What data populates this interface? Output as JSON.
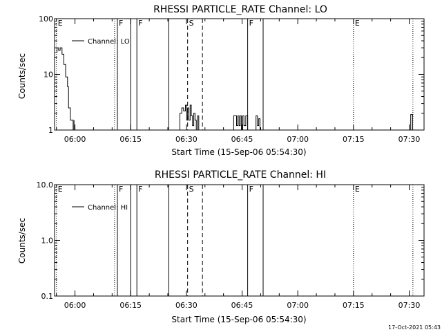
{
  "timestamp": "17-Oct-2021 05:43",
  "chart_data": [
    {
      "type": "line",
      "title": "RHESSI PARTICLE_RATE Channel: LO",
      "xlabel": "Start Time (15-Sep-06 05:54:30)",
      "ylabel": "Counts/sec",
      "yscale": "log",
      "ylim": [
        1,
        100
      ],
      "yticks": [
        1,
        10,
        100
      ],
      "ytick_labels": [
        "1",
        "10",
        "100"
      ],
      "xlim": [
        "05:54:30",
        "07:34:00"
      ],
      "xticks": [
        "06:00",
        "06:15",
        "06:30",
        "06:45",
        "07:00",
        "07:15",
        "07:30"
      ],
      "legend": "top-left",
      "series": [
        {
          "name": "Channel: LO",
          "segments": [
            [
              [
                "05:54:45",
                25
              ],
              [
                "05:55:10",
                30
              ],
              [
                "05:55:35",
                27
              ],
              [
                "05:56:00",
                30
              ],
              [
                "05:56:30",
                23
              ],
              [
                "05:57:00",
                15
              ],
              [
                "05:57:30",
                9
              ],
              [
                "05:58:00",
                6
              ],
              [
                "05:58:15",
                2.5
              ],
              [
                "05:58:45",
                1.5
              ],
              [
                "05:59:15",
                1.5
              ],
              [
                "05:59:30",
                1
              ],
              [
                "05:59:45",
                1.5
              ]
            ],
            [
              [
                "06:27:45",
                1
              ],
              [
                "06:28:15",
                2
              ],
              [
                "06:28:45",
                2.5
              ],
              [
                "06:29:15",
                2.2
              ],
              [
                "06:29:45",
                2.8
              ],
              [
                "06:30:05",
                1.5
              ],
              [
                "06:30:20",
                2.5
              ],
              [
                "06:30:40",
                1.5
              ],
              [
                "06:31:00",
                2.8
              ],
              [
                "06:31:20",
                1.8
              ],
              [
                "06:31:40",
                1.2
              ],
              [
                "06:32:00",
                2
              ],
              [
                "06:32:20",
                1.5
              ],
              [
                "06:32:40",
                1
              ],
              [
                "06:33:00",
                1.8
              ],
              [
                "06:33:20",
                1
              ]
            ],
            [
              [
                "06:42:30",
                1
              ],
              [
                "06:42:45",
                1.8
              ],
              [
                "06:43:10",
                1.8
              ],
              [
                "06:43:30",
                1.2
              ],
              [
                "06:43:50",
                1.8
              ],
              [
                "06:44:10",
                1.2
              ],
              [
                "06:44:30",
                1.8
              ],
              [
                "06:44:50",
                1
              ],
              [
                "06:45:10",
                1.8
              ],
              [
                "06:45:30",
                1.2
              ],
              [
                "06:46:00",
                1.8
              ],
              [
                "06:46:30",
                1
              ]
            ],
            [
              [
                "06:48:20",
                1
              ],
              [
                "06:48:45",
                1.8
              ],
              [
                "06:49:10",
                1.2
              ],
              [
                "06:49:30",
                1.6
              ],
              [
                "06:49:50",
                1
              ]
            ],
            [
              [
                "07:30:10",
                1
              ],
              [
                "07:30:25",
                1.9
              ],
              [
                "07:30:40",
                1.9
              ],
              [
                "07:30:55",
                1
              ]
            ]
          ]
        }
      ],
      "markers": [
        {
          "time": "05:55:00",
          "label": "E",
          "style": "dotted"
        },
        {
          "time": "06:10:40",
          "label": "",
          "style": "dotted"
        },
        {
          "time": "06:11:25",
          "label": "F",
          "style": "solid"
        },
        {
          "time": "06:15:00",
          "label": "",
          "style": "solid"
        },
        {
          "time": "06:16:40",
          "label": "F",
          "style": "solid"
        },
        {
          "time": "06:25:15",
          "label": "",
          "style": "solid"
        },
        {
          "time": "06:30:20",
          "label": "S",
          "style": "dashed"
        },
        {
          "time": "06:34:20",
          "label": "",
          "style": "dashed"
        },
        {
          "time": "06:46:30",
          "label": "F",
          "style": "solid"
        },
        {
          "time": "06:50:40",
          "label": "",
          "style": "solid"
        },
        {
          "time": "07:15:00",
          "label": "E",
          "style": "dotted"
        },
        {
          "time": "07:31:00",
          "label": "",
          "style": "dotted"
        }
      ]
    },
    {
      "type": "line",
      "title": "RHESSI PARTICLE_RATE Channel: HI",
      "xlabel": "Start Time (15-Sep-06 05:54:30)",
      "ylabel": "Counts/sec",
      "yscale": "log",
      "ylim": [
        0.1,
        10
      ],
      "yticks": [
        0.1,
        1,
        10
      ],
      "ytick_labels": [
        "0.1",
        "1.0",
        "10.0"
      ],
      "xlim": [
        "05:54:30",
        "07:34:00"
      ],
      "xticks": [
        "06:00",
        "06:15",
        "06:30",
        "06:45",
        "07:00",
        "07:15",
        "07:30"
      ],
      "legend": "top-left",
      "series": [
        {
          "name": "Channel: HI",
          "segments": []
        }
      ],
      "markers": [
        {
          "time": "05:55:00",
          "label": "E",
          "style": "dotted"
        },
        {
          "time": "06:10:40",
          "label": "",
          "style": "dotted"
        },
        {
          "time": "06:11:25",
          "label": "F",
          "style": "solid"
        },
        {
          "time": "06:15:00",
          "label": "",
          "style": "solid"
        },
        {
          "time": "06:16:40",
          "label": "F",
          "style": "solid"
        },
        {
          "time": "06:25:15",
          "label": "",
          "style": "solid"
        },
        {
          "time": "06:30:20",
          "label": "S",
          "style": "dashed"
        },
        {
          "time": "06:34:20",
          "label": "",
          "style": "dashed"
        },
        {
          "time": "06:46:30",
          "label": "F",
          "style": "solid"
        },
        {
          "time": "06:50:40",
          "label": "",
          "style": "solid"
        },
        {
          "time": "07:15:00",
          "label": "E",
          "style": "dotted"
        },
        {
          "time": "07:31:00",
          "label": "",
          "style": "dotted"
        }
      ]
    }
  ]
}
